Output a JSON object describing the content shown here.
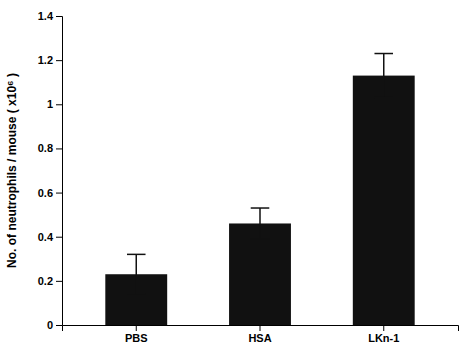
{
  "chart_data": {
    "type": "bar",
    "categories": [
      "PBS",
      "HSA",
      "LKn-1"
    ],
    "values": [
      0.23,
      0.46,
      1.13
    ],
    "errors": [
      0.09,
      0.07,
      0.1
    ],
    "color": "#111111",
    "ylabel": "No. of neutrophils / mouse  ( x10⁶ )",
    "ylim": [
      0,
      1.4
    ],
    "yticks": [
      0,
      0.2,
      0.4,
      0.6,
      0.8,
      1,
      1.2,
      1.4
    ],
    "grid": false
  }
}
